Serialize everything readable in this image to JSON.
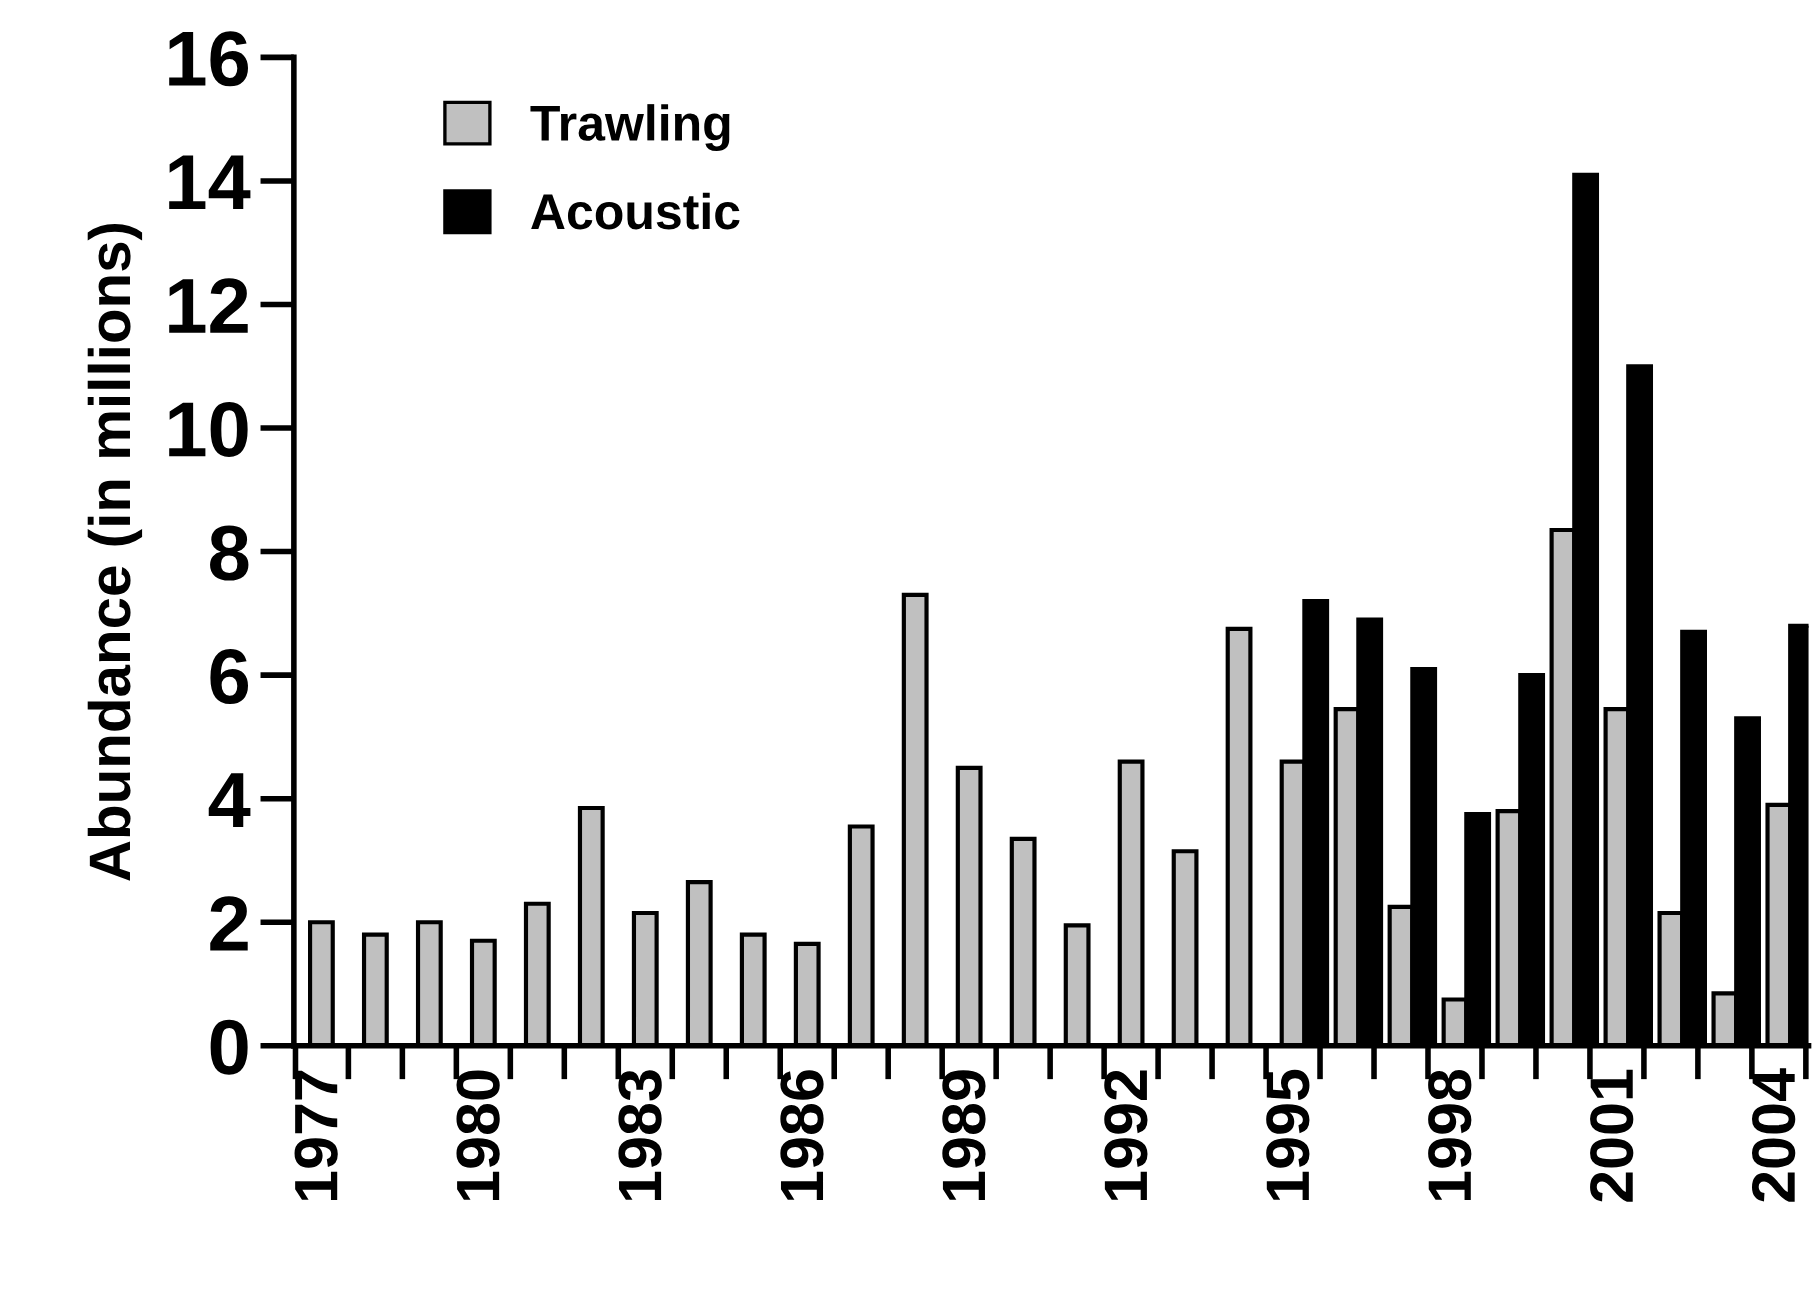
{
  "chart_data": {
    "type": "bar",
    "ylabel": "Abundance (in millions)",
    "categories": [
      "1977",
      null,
      null,
      "1980",
      null,
      null,
      "1983",
      null,
      null,
      "1986",
      null,
      null,
      "1989",
      null,
      null,
      "1992",
      null,
      null,
      "1995",
      null,
      null,
      "1998",
      null,
      null,
      "2001",
      null,
      null,
      "2004"
    ],
    "series": [
      {
        "name": "Trawling",
        "color": "#c0c0c0",
        "values": [
          2.0,
          1.8,
          2.0,
          1.7,
          2.3,
          3.85,
          2.15,
          2.65,
          1.8,
          1.65,
          3.55,
          7.3,
          4.5,
          3.35,
          1.95,
          4.6,
          3.15,
          6.75,
          4.6,
          5.45,
          2.25,
          0.75,
          3.8,
          8.35,
          5.45,
          2.15,
          0.85,
          3.9
        ]
      },
      {
        "name": "Acoustic",
        "color": "#000000",
        "values": [
          null,
          null,
          null,
          null,
          null,
          null,
          null,
          null,
          null,
          null,
          null,
          null,
          null,
          null,
          null,
          null,
          null,
          null,
          7.2,
          6.9,
          6.1,
          3.75,
          6.0,
          14.1,
          11.0,
          6.7,
          5.3,
          6.8
        ]
      }
    ],
    "ylim": [
      0,
      16
    ],
    "yticks": [
      0,
      2,
      4,
      6,
      8,
      10,
      12,
      14,
      16
    ],
    "grid": false,
    "legend": "top left"
  }
}
